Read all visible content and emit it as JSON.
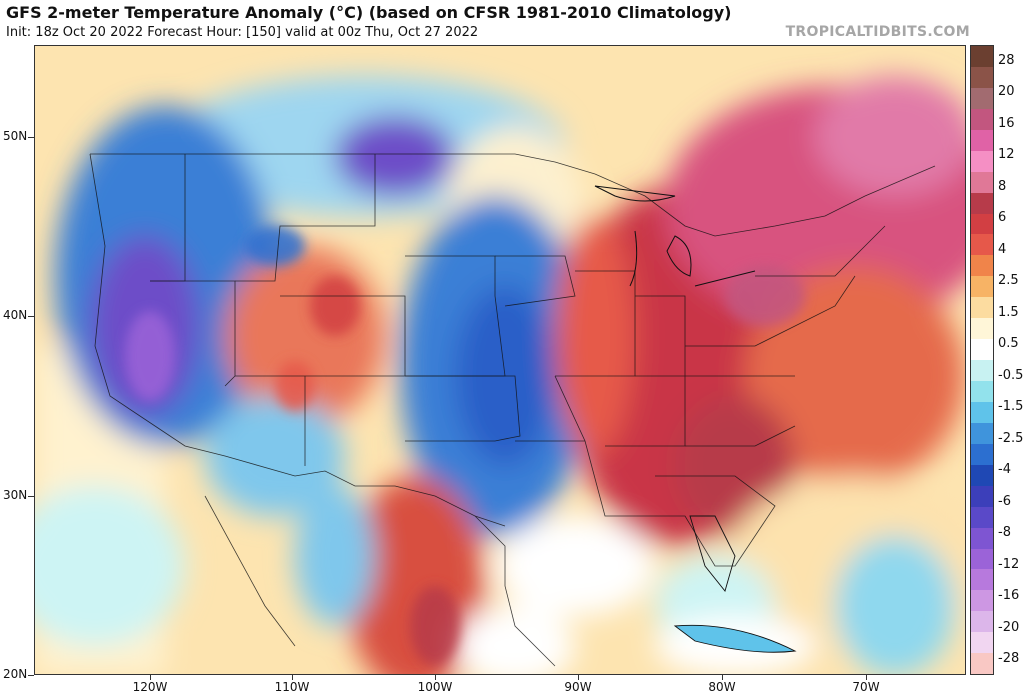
{
  "title": "GFS 2-meter Temperature Anomaly (°C) (based on CFSR 1981-2010 Climatology)",
  "subtitle": "Init: 18z Oct 20 2022   Forecast Hour: [150]   valid at 00z Thu, Oct 27 2022",
  "brand": "TROPICALTIDBITS.COM",
  "latitudes": [
    "50N",
    "40N",
    "30N",
    "20N"
  ],
  "longitudes": [
    "120W",
    "110W",
    "100W",
    "90W",
    "80W",
    "70W"
  ],
  "colorbar": {
    "labels": [
      "28",
      "20",
      "16",
      "12",
      "8",
      "6",
      "4",
      "2.5",
      "1.5",
      "0.5",
      "-0.5",
      "-1.5",
      "-2.5",
      "-4",
      "-6",
      "-8",
      "-12",
      "-16",
      "-20",
      "-28"
    ],
    "colors": [
      "#6b3f30",
      "#8b5348",
      "#a26b70",
      "#c2567f",
      "#e062a6",
      "#f58fc4",
      "#e07897",
      "#b73b4a",
      "#d23f43",
      "#e6584a",
      "#f0844a",
      "#f7b365",
      "#fcdca0",
      "#fff6d8",
      "#ffffff",
      "#c8f2f2",
      "#92e2ec",
      "#5fc3ea",
      "#3f94dc",
      "#2c6fd0",
      "#1f48b4",
      "#3c3fba",
      "#5a49c8",
      "#7e55d2",
      "#9b63d8",
      "#b779dd",
      "#cd97e3",
      "#dcb6ea",
      "#f1d6f1",
      "#f9c8c4"
    ]
  }
}
